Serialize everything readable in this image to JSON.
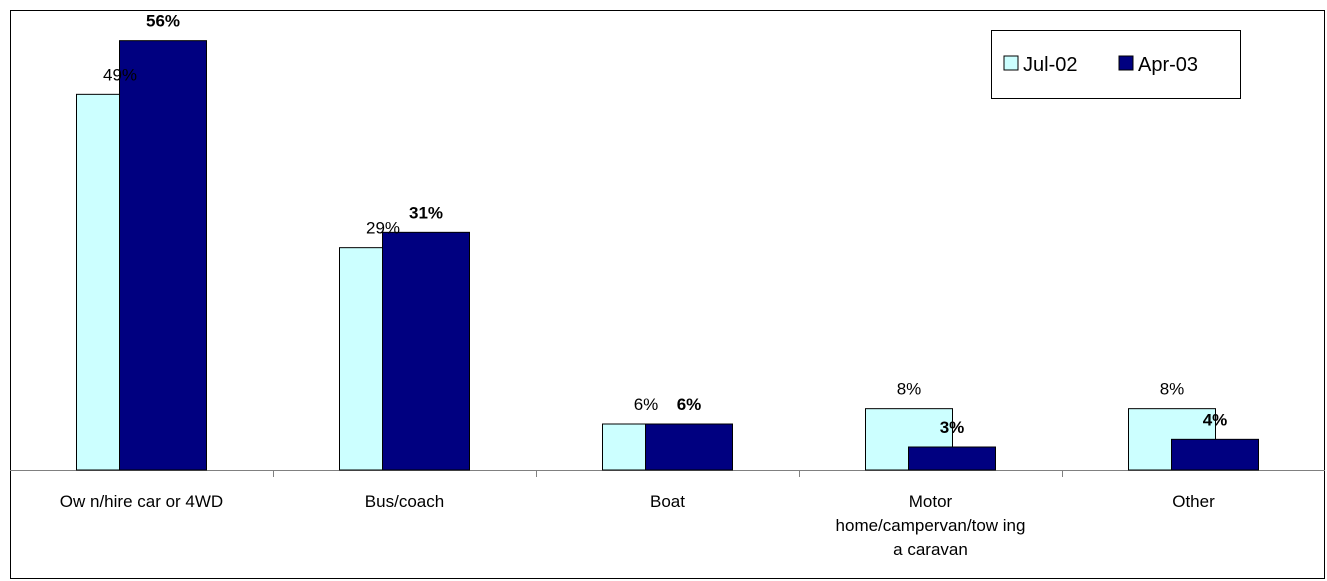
{
  "chart_data": {
    "type": "bar",
    "categories": [
      [
        "Ow n/hire car or 4WD"
      ],
      [
        "Bus/coach"
      ],
      [
        "Boat"
      ],
      [
        "Motor",
        "home/campervan/tow ing",
        "a caravan"
      ],
      [
        "Other"
      ]
    ],
    "series": [
      {
        "name": "Jul-02",
        "values": [
          49,
          29,
          6,
          8,
          8
        ],
        "labels": [
          "49%",
          "29%",
          "6%",
          "8%",
          "8%"
        ],
        "color": "#ccffff",
        "label_bold": false
      },
      {
        "name": "Apr-03",
        "values": [
          56,
          31,
          6,
          3,
          4
        ],
        "labels": [
          "56%",
          "31%",
          "6%",
          "3%",
          "4%"
        ],
        "color": "#000080",
        "label_bold": true
      }
    ],
    "ylim": [
      0,
      60
    ],
    "grid": false,
    "legend_position": "top-right"
  }
}
